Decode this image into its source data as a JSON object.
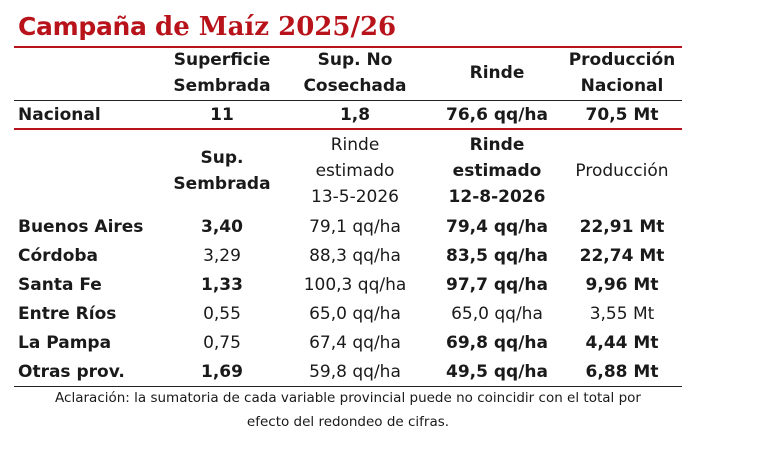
{
  "title": {
    "part1": "Campaña ",
    "part2": "de Maíz 2025/26",
    "color": "#b8131a"
  },
  "national_header": {
    "superficie": [
      "Superficie",
      "Sembrada"
    ],
    "no_cosechada": [
      "Sup. No",
      "Cosechada"
    ],
    "rinde": "Rinde",
    "produccion": [
      "Producción",
      "Nacional"
    ]
  },
  "national": {
    "label": "Nacional",
    "superficie": "11",
    "no_cosechada": "1,8",
    "rinde": "76,6 qq/ha",
    "produccion": "70,5 Mt"
  },
  "province_header": {
    "superficie": [
      "Sup.",
      "Sembrada"
    ],
    "rinde_prev": [
      "Rinde",
      "estimado",
      "13-5-2026"
    ],
    "rinde_new": [
      "Rinde",
      "estimado",
      "12-8-2026"
    ],
    "produccion": "Producción"
  },
  "provinces": [
    {
      "name": "Buenos Aires",
      "superficie": "3,40",
      "rinde_prev": "79,1 qq/ha",
      "rinde_new": "79,4 qq/ha",
      "produccion": "22,91 Mt"
    },
    {
      "name": "Córdoba",
      "superficie": "3,29",
      "rinde_prev": "88,3 qq/ha",
      "rinde_new": "83,5 qq/ha",
      "produccion": "22,74 Mt"
    },
    {
      "name": "Santa Fe",
      "superficie": "1,33",
      "rinde_prev": "100,3 qq/ha",
      "rinde_new": "97,7 qq/ha",
      "produccion": "9,96 Mt"
    },
    {
      "name": "Entre Ríos",
      "superficie": "0,55",
      "rinde_prev": "65,0 qq/ha",
      "rinde_new": "65,0 qq/ha",
      "produccion": "3,55 Mt"
    },
    {
      "name": "La Pampa",
      "superficie": "0,75",
      "rinde_prev": "67,4 qq/ha",
      "rinde_new": "69,8 qq/ha",
      "produccion": "4,44 Mt"
    },
    {
      "name": "Otras prov.",
      "superficie": "1,69",
      "rinde_prev": "59,8 qq/ha",
      "rinde_new": "49,5 qq/ha",
      "produccion": "6,88 Mt"
    }
  ],
  "note": [
    "Aclaración: la sumatoria de cada variable provincial puede no coincidir con el total por",
    "efecto del redondeo de cifras."
  ]
}
